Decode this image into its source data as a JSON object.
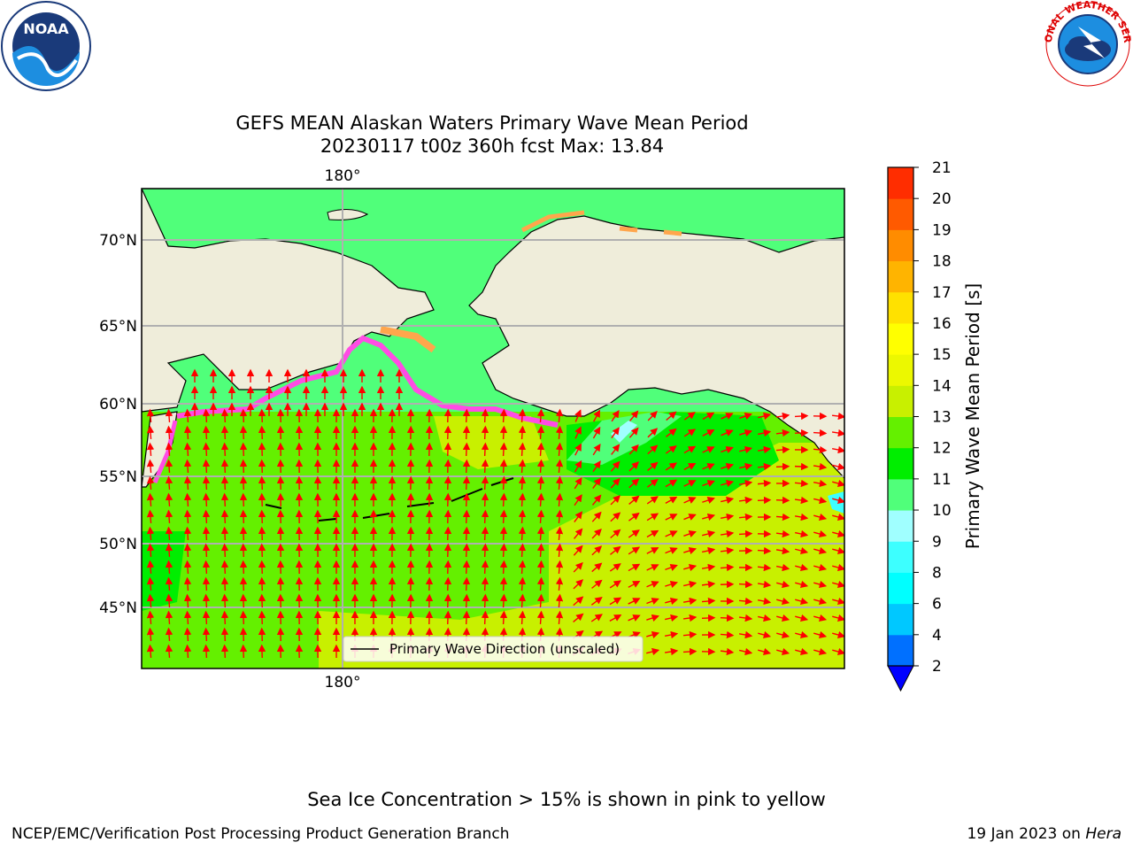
{
  "title_line1": "GEFS MEAN Alaskan Waters Primary Wave Mean Period",
  "title_line2": "20230117 t00z 360h fcst   Max: 13.84",
  "map": {
    "lon_labels": [
      "180°",
      "180°"
    ],
    "lat_labels": [
      "70°N",
      "65°N",
      "60°N",
      "55°N",
      "50°N",
      "45°N"
    ],
    "legend_label": "Primary Wave Direction (unscaled)",
    "land_color": "#efedda",
    "arrow_color": "#ff0000"
  },
  "colorbar": {
    "label": "Primary Wave Mean Period [s]",
    "ticks": [
      "2",
      "4",
      "6",
      "8",
      "9",
      "10",
      "11",
      "12",
      "13",
      "14",
      "15",
      "16",
      "17",
      "18",
      "19",
      "20",
      "21"
    ],
    "colors": [
      "#0070ff",
      "#00c8ff",
      "#00ffff",
      "#3dffff",
      "#a0ffff",
      "#50ff7a",
      "#00ee00",
      "#64f000",
      "#c8f000",
      "#ecf800",
      "#ffff00",
      "#ffe100",
      "#ffb400",
      "#ff8c00",
      "#ff5a00",
      "#ff2d00"
    ],
    "extend_color": "#0000ff"
  },
  "footer": {
    "note": "Sea Ice Concentration > 15% is shown in pink to yellow",
    "left": "NCEP/EMC/Verification Post Processing Product Generation Branch",
    "right_date": "19 Jan 2023 on ",
    "right_host": "Hera"
  },
  "logos": {
    "noaa_text": "NOAA",
    "nws_text": "NATIONAL WEATHER SERVICE"
  }
}
